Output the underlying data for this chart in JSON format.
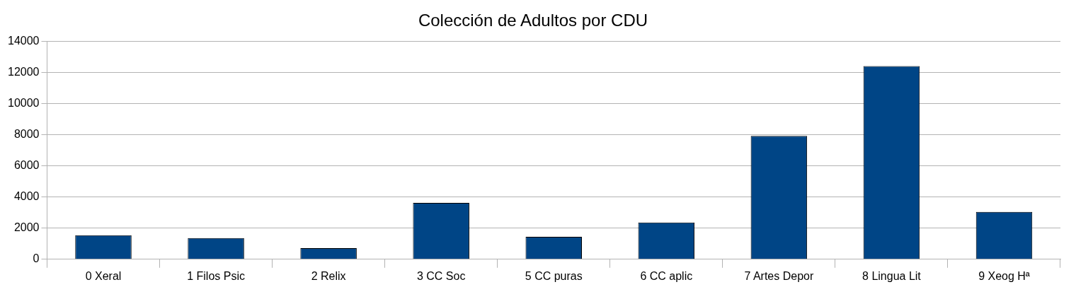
{
  "chart_data": {
    "type": "bar",
    "title": "Colección de Adultos por CDU",
    "categories": [
      "0 Xeral",
      "1 Filos Psic",
      "2 Relix",
      "3 CC Soc",
      "5 CC puras",
      "6 CC aplic",
      "7 Artes Depor",
      "8 Lingua Lit",
      "9 Xeog Hª"
    ],
    "values": [
      1550,
      1370,
      720,
      3630,
      1440,
      2370,
      7930,
      12420,
      3050
    ],
    "color": "#004586",
    "ylim": [
      0,
      14000
    ],
    "yticks": [
      0,
      2000,
      4000,
      6000,
      8000,
      10000,
      12000,
      14000
    ],
    "grid": "y",
    "legend": false
  }
}
